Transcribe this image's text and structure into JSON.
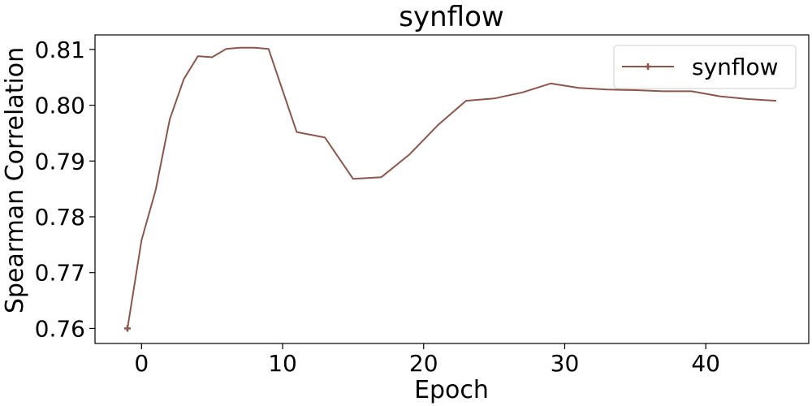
{
  "chart_data": {
    "type": "line",
    "title": "synflow",
    "xlabel": "Epoch",
    "ylabel": "Spearman Correlation",
    "xlim": [
      -3.3,
      47.3
    ],
    "ylim": [
      0.7573,
      0.8126
    ],
    "xticks": [
      0,
      10,
      20,
      30,
      40
    ],
    "xtick_labels": [
      "0",
      "10",
      "20",
      "30",
      "40"
    ],
    "yticks": [
      0.76,
      0.77,
      0.78,
      0.79,
      0.8,
      0.81
    ],
    "ytick_labels": [
      "0.76",
      "0.77",
      "0.78",
      "0.79",
      "0.80",
      "0.81"
    ],
    "grid": false,
    "legend_position": "top-right",
    "series": [
      {
        "name": "synflow",
        "color": "#8c564b",
        "marker": "plus",
        "marker_indices": [
          0
        ],
        "x": [
          -1,
          0,
          1,
          2,
          3,
          4,
          5,
          6,
          7,
          8,
          9,
          11,
          13,
          15,
          17,
          19,
          21,
          23,
          25,
          27,
          29,
          31,
          33,
          35,
          37,
          39,
          41,
          43,
          45
        ],
        "y": [
          0.76,
          0.7758,
          0.7848,
          0.7975,
          0.8047,
          0.8088,
          0.8086,
          0.8101,
          0.8103,
          0.8103,
          0.8101,
          0.7952,
          0.7942,
          0.7868,
          0.7871,
          0.7912,
          0.7964,
          0.8008,
          0.8012,
          0.8023,
          0.8039,
          0.8031,
          0.8028,
          0.8027,
          0.8025,
          0.8025,
          0.8016,
          0.8011,
          0.8008
        ]
      }
    ]
  }
}
